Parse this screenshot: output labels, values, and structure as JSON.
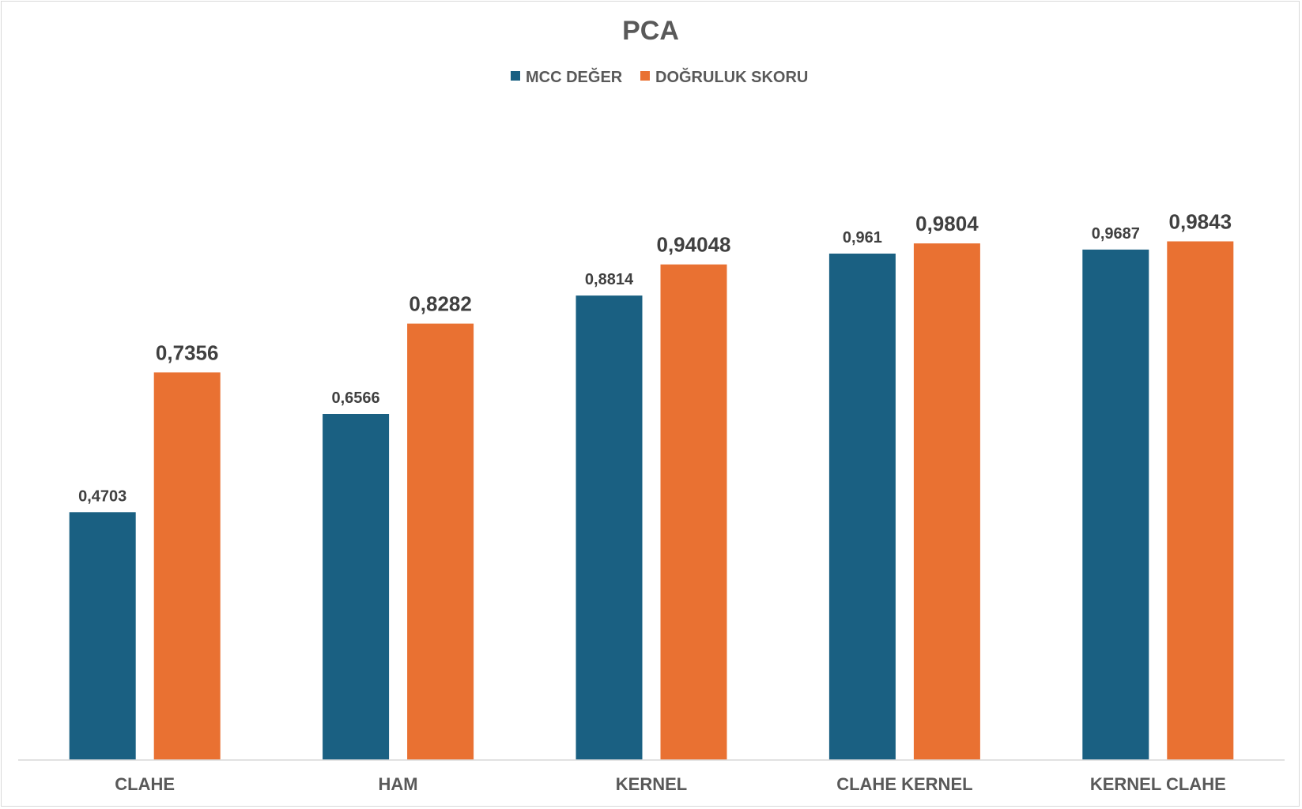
{
  "chart_data": {
    "type": "bar",
    "title": "PCA",
    "xlabel": "",
    "ylabel": "",
    "categories": [
      "CLAHE",
      "HAM",
      "KERNEL",
      "CLAHE KERNEL",
      "KERNEL CLAHE"
    ],
    "series": [
      {
        "name": "MCC DEĞER",
        "color": "#1a6082",
        "values": [
          0.4703,
          0.6566,
          0.8814,
          0.961,
          0.9687
        ],
        "labels": [
          "0,4703",
          "0,6566",
          "0,8814",
          "0,961",
          "0,9687"
        ]
      },
      {
        "name": "DOĞRULUK SKORU",
        "color": "#e97132",
        "values": [
          0.7356,
          0.8282,
          0.94048,
          0.9804,
          0.9843
        ],
        "labels": [
          "0,7356",
          "0,8282",
          "0,94048",
          "0,9804",
          "0,9843"
        ]
      }
    ],
    "ylim": [
      0,
      1
    ],
    "legend_position": "top",
    "grid": false,
    "axis_color": "#d9d9d9"
  }
}
